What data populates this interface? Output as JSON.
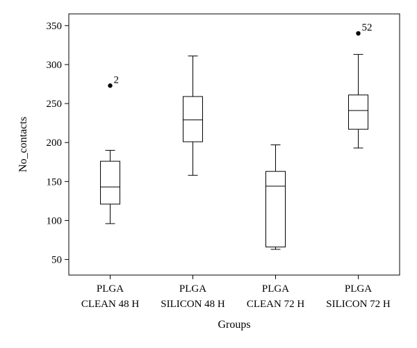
{
  "chart_data": {
    "type": "boxplot",
    "xlabel": "Groups",
    "ylabel": "No_contacts",
    "ylim": [
      30,
      365
    ],
    "yticks": [
      50,
      100,
      150,
      200,
      250,
      300,
      350
    ],
    "grid": false,
    "categories": [
      [
        "PLGA",
        "CLEAN 48 H"
      ],
      [
        "PLGA",
        "SILICON 48 H"
      ],
      [
        "PLGA",
        "CLEAN 72 H"
      ],
      [
        "PLGA",
        "SILICON 72 H"
      ]
    ],
    "boxes": [
      {
        "whisker_low": 96,
        "q1": 121,
        "median": 143,
        "q3": 176,
        "whisker_high": 190,
        "outliers": [
          {
            "value": 273,
            "label": "2"
          }
        ]
      },
      {
        "whisker_low": 158,
        "q1": 201,
        "median": 229,
        "q3": 259,
        "whisker_high": 311,
        "outliers": []
      },
      {
        "whisker_low": 63,
        "q1": 66,
        "median": 144,
        "q3": 163,
        "whisker_high": 197,
        "outliers": []
      },
      {
        "whisker_low": 193,
        "q1": 217,
        "median": 241,
        "q3": 261,
        "whisker_high": 313,
        "outliers": [
          {
            "value": 340,
            "label": "52"
          }
        ]
      }
    ]
  }
}
